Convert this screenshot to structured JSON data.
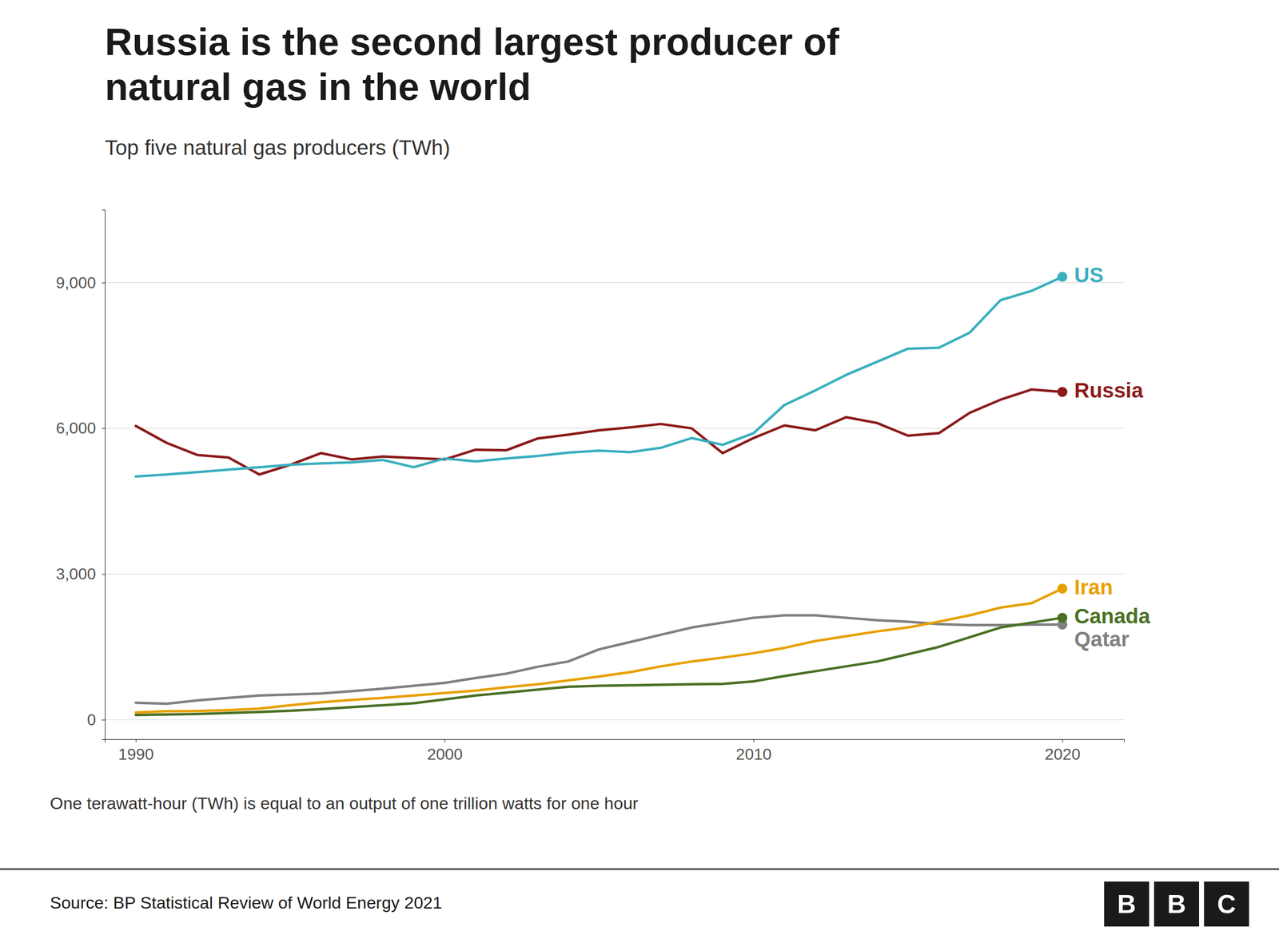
{
  "chart_data": {
    "type": "line",
    "title": [
      "Russia is the second largest producer of",
      "natural gas in the world"
    ],
    "subtitle": "Top five natural gas producers (TWh)",
    "annotations": [
      "One terawatt-hour (TWh) is equal to an output of one trillion watts for one hour",
      "Source: BP Statistical Review of World Energy 2021",
      "BBC"
    ],
    "x": [
      1990,
      1991,
      1992,
      1993,
      1994,
      1995,
      1996,
      1997,
      1998,
      1999,
      2000,
      2001,
      2002,
      2003,
      2004,
      2005,
      2006,
      2007,
      2008,
      2009,
      2010,
      2011,
      2012,
      2013,
      2014,
      2015,
      2016,
      2017,
      2018,
      2019,
      2020
    ],
    "series": [
      {
        "name": "Qatar",
        "color": "#808080",
        "values": [
          350,
          330,
          400,
          450,
          500,
          520,
          540,
          590,
          640,
          700,
          760,
          860,
          950,
          1090,
          1200,
          1450,
          1600,
          1750,
          1900,
          2000,
          2100,
          2150,
          2150,
          2100,
          2050,
          2020,
          1970,
          1950,
          1950,
          1960,
          1960
        ]
      },
      {
        "name": "Canada",
        "color": "#4A7023",
        "values": [
          100,
          110,
          120,
          140,
          160,
          185,
          220,
          260,
          300,
          340,
          420,
          500,
          560,
          620,
          680,
          700,
          710,
          720,
          730,
          740,
          790,
          900,
          1000,
          1100,
          1200,
          1350,
          1500,
          1700,
          1900,
          2000,
          2100
        ]
      },
      {
        "name": "Iran",
        "color": "#E8A000",
        "values": [
          150,
          175,
          180,
          200,
          230,
          300,
          360,
          410,
          450,
          500,
          550,
          600,
          670,
          730,
          810,
          890,
          980,
          1100,
          1200,
          1280,
          1370,
          1480,
          1620,
          1720,
          1820,
          1900,
          2020,
          2150,
          2310,
          2400,
          2700
        ]
      },
      {
        "name": "Russia",
        "color": "#8B1A1A",
        "values": [
          6050,
          5700,
          5450,
          5400,
          5050,
          5250,
          5490,
          5360,
          5420,
          5390,
          5360,
          5560,
          5550,
          5790,
          5870,
          5960,
          6020,
          6090,
          6000,
          5490,
          5800,
          6060,
          5960,
          6230,
          6110,
          5850,
          5900,
          6320,
          6590,
          6800,
          6750
        ]
      },
      {
        "name": "US",
        "color": "#3AAFBE",
        "values": [
          5010,
          5050,
          5100,
          5150,
          5200,
          5250,
          5280,
          5300,
          5350,
          5200,
          5380,
          5320,
          5380,
          5430,
          5500,
          5540,
          5510,
          5600,
          5800,
          5660,
          5900,
          6480,
          6780,
          7100,
          7370,
          7640,
          7660,
          7970,
          8640,
          8830,
          9120
        ]
      }
    ],
    "xlim": [
      1989,
      2022
    ],
    "xticks": [
      1990,
      2000,
      2010,
      2020
    ],
    "ylim": [
      -400,
      10500
    ],
    "yticks": [
      0,
      {
        "value": 3000,
        "label": "3,000"
      },
      {
        "value": 6000,
        "label": "6,000"
      },
      {
        "value": 9000,
        "label": "9,000"
      }
    ],
    "grid": true
  }
}
